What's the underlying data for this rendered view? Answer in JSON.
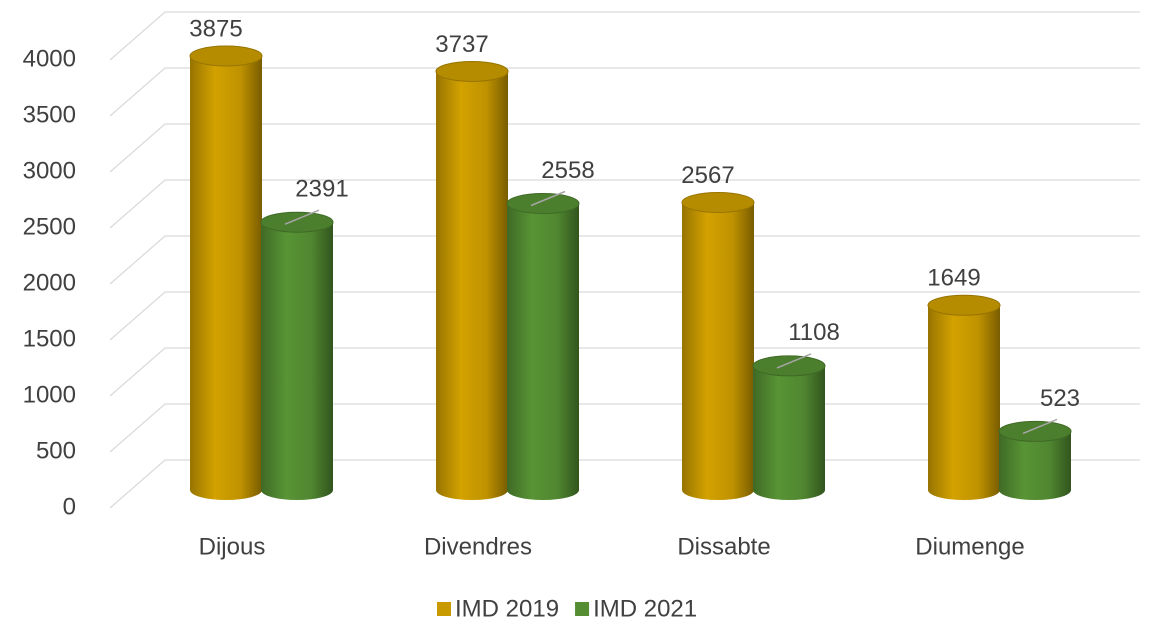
{
  "chart_data": {
    "type": "bar",
    "categories": [
      "Dijous",
      "Divendres",
      "Dissabte",
      "Diumenge"
    ],
    "series": [
      {
        "name": "IMD 2019",
        "color": "#c99a00",
        "values": [
          3875,
          3737,
          2567,
          1649
        ]
      },
      {
        "name": "IMD 2021",
        "color": "#548d32",
        "values": [
          2391,
          2558,
          1108,
          523
        ]
      }
    ],
    "ylim": [
      0,
      4000
    ],
    "yticks": [
      0,
      500,
      1000,
      1500,
      2000,
      2500,
      3000,
      3500,
      4000
    ],
    "grid": true,
    "legend": "bottom"
  }
}
